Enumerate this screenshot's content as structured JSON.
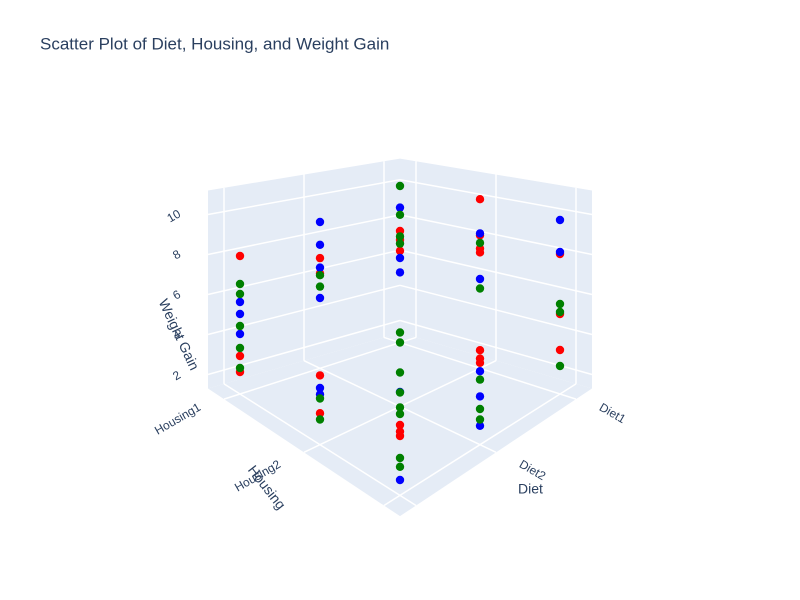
{
  "chart_data": {
    "type": "scatter3d",
    "title": "Scatter Plot of Diet, Housing, and Weight Gain",
    "x_label": "Diet",
    "y_label": "Housing",
    "z_label": "Weight Gain",
    "x_categories": [
      "Diet1",
      "Diet2",
      null
    ],
    "y_categories": [
      "Housing1",
      "Housing2",
      null
    ],
    "zlim": [
      1.3,
      11.2
    ],
    "zticks": [
      2,
      4,
      6,
      8,
      10
    ],
    "grid": true,
    "series": [
      {
        "color": "#ff0000",
        "x": [
          2,
          2,
          2,
          1,
          1,
          0,
          0,
          0,
          0,
          0,
          0,
          0,
          0,
          0,
          1,
          1,
          2,
          2,
          2,
          2,
          2,
          0,
          1
        ],
        "y": [
          0,
          0,
          0,
          0,
          0,
          0,
          0,
          0,
          1,
          1,
          1,
          1,
          2,
          2,
          2,
          2,
          2,
          2,
          2,
          1,
          1,
          2,
          2
        ],
        "z": [
          8.2,
          3.2,
          2.4,
          7.1,
          6.3,
          7.5,
          7.0,
          6.4,
          10.2,
          8.3,
          7.6,
          7.4,
          8.3,
          3.5,
          5.8,
          5.4,
          4.5,
          4.2,
          4.0,
          4.6,
          2.8,
          5.3,
          5.2
        ]
      },
      {
        "color": "#0000ff",
        "x": [
          2,
          2,
          2,
          1,
          1,
          1,
          1,
          0,
          0,
          0,
          0,
          0,
          0,
          0,
          1,
          1,
          1,
          2,
          2,
          2,
          2
        ],
        "y": [
          0,
          0,
          0,
          0,
          0,
          0,
          0,
          0,
          0,
          0,
          1,
          1,
          2,
          2,
          2,
          2,
          2,
          2,
          2,
          1,
          1
        ],
        "z": [
          5.3,
          4.3,
          5.9,
          6.6,
          5.0,
          9.0,
          7.8,
          8.8,
          6.0,
          5.2,
          8.4,
          6.0,
          10.0,
          8.4,
          4.8,
          3.6,
          2.2,
          6.0,
          2.0,
          4.0,
          3.7
        ]
      },
      {
        "color": "#008000",
        "x": [
          2,
          2,
          2,
          2,
          2,
          1,
          1,
          0,
          0,
          0,
          0,
          0,
          0,
          0,
          0,
          0,
          1,
          1,
          1,
          2,
          2,
          2,
          2,
          2,
          2,
          1,
          1,
          1,
          1
        ],
        "y": [
          0,
          0,
          0,
          0,
          0,
          0,
          0,
          0,
          0,
          0,
          0,
          1,
          1,
          2,
          2,
          2,
          2,
          2,
          2,
          2,
          2,
          2,
          2,
          1,
          1,
          1,
          1,
          1,
          1
        ],
        "z": [
          6.8,
          6.3,
          4.7,
          3.6,
          2.6,
          6.2,
          5.6,
          10.0,
          8.4,
          7.2,
          6.8,
          7.9,
          5.5,
          5.8,
          5.4,
          2.7,
          4.4,
          3.0,
          2.5,
          5.3,
          5.0,
          3.0,
          2.6,
          3.5,
          2.5,
          5.0,
          4.5,
          3.0,
          2.0
        ]
      }
    ]
  }
}
